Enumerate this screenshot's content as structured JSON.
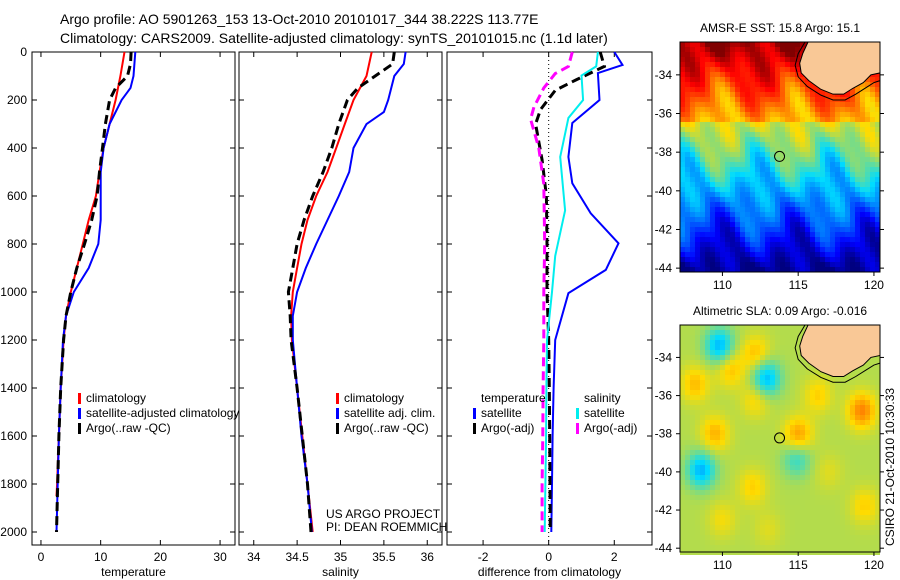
{
  "title_line1": "Argo profile: AO 5901263_153 13-Oct-2010 20101017_344 38.222S 113.77E",
  "title_line2": "Climatology: CARS2009. Satellite-adjusted climatology: synTS_20101015.nc (1.1d later)",
  "credit": "CSIRO 21-Oct-2010 10:30:33",
  "colors": {
    "climatology": "#ff0000",
    "satellite": "#0000ff",
    "argo": "#000000",
    "sal_satellite": "#00eeee",
    "sal_argo": "#ff00ff",
    "land": "#f9c896"
  },
  "chart_data": [
    {
      "type": "line",
      "id": "temperature",
      "xlabel": "temperature",
      "ylabel": "depth",
      "xlim": [
        -1.5,
        32.5
      ],
      "ylim": [
        2000,
        0
      ],
      "xticks": [
        0,
        10,
        20,
        30
      ],
      "yticks": [
        0,
        200,
        400,
        600,
        800,
        1000,
        1200,
        1400,
        1600,
        1800,
        2000
      ],
      "legend": [
        "climatology",
        "satellite-adjusted climatology",
        "Argo(..raw -QC)"
      ],
      "series": [
        {
          "name": "climatology",
          "color": "#ff0000",
          "dash": false,
          "depth": [
            0,
            100,
            200,
            300,
            400,
            500,
            600,
            700,
            800,
            900,
            1000,
            1100,
            1200,
            1400,
            1600,
            1800,
            1850
          ],
          "values": [
            14,
            13.3,
            12.5,
            11.5,
            10.5,
            9.8,
            9.2,
            8,
            7,
            6,
            5,
            4.2,
            3.8,
            3.3,
            3.0,
            2.7,
            2.6
          ]
        },
        {
          "name": "satellite-adjusted climatology",
          "color": "#0000ff",
          "dash": false,
          "depth": [
            0,
            100,
            150,
            200,
            300,
            400,
            500,
            600,
            700,
            800,
            900,
            1000,
            1100,
            1200,
            1400,
            1600,
            1800,
            2000
          ],
          "values": [
            15.8,
            15.5,
            15,
            13.5,
            11.5,
            10.5,
            10,
            10,
            10,
            9.6,
            8,
            5.5,
            4.2,
            3.7,
            3.3,
            3,
            2.8,
            2.6
          ]
        },
        {
          "name": "Argo(..raw -QC)",
          "color": "#000000",
          "dash": true,
          "depth": [
            0,
            50,
            100,
            150,
            200,
            300,
            400,
            500,
            600,
            700,
            800,
            900,
            1000,
            1100,
            1200,
            1400,
            1600,
            1800,
            2000
          ],
          "values": [
            15.1,
            15,
            14.5,
            12.5,
            11.5,
            10.8,
            10.3,
            9.8,
            9.4,
            8.5,
            7.3,
            6,
            5,
            4.2,
            3.8,
            3.3,
            3,
            2.8,
            2.6
          ]
        }
      ]
    },
    {
      "type": "line",
      "id": "salinity",
      "xlabel": "salinity",
      "xlim": [
        33.83,
        36.17
      ],
      "ylim": [
        2000,
        0
      ],
      "xticks": [
        34,
        34.5,
        35,
        35.5,
        36
      ],
      "legend": [
        "climatology",
        "satellite adj. clim.",
        "Argo(..raw -QC)"
      ],
      "annotation": [
        "US ARGO PROJECT",
        "PI: DEAN ROEMMICH"
      ],
      "series": [
        {
          "name": "climatology",
          "color": "#ff0000",
          "dash": false,
          "depth": [
            0,
            100,
            200,
            300,
            400,
            500,
            600,
            700,
            800,
            900,
            1000,
            1100,
            1200,
            1400,
            1600,
            1800,
            2000
          ],
          "values": [
            35.36,
            35.3,
            35.15,
            35.05,
            34.95,
            34.85,
            34.72,
            34.62,
            34.55,
            34.5,
            34.45,
            34.43,
            34.44,
            34.5,
            34.56,
            34.62,
            34.68
          ]
        },
        {
          "name": "satellite adj. clim.",
          "color": "#0000ff",
          "dash": false,
          "depth": [
            0,
            50,
            100,
            200,
            250,
            300,
            400,
            500,
            600,
            700,
            800,
            900,
            1000,
            1100,
            1200,
            1400,
            1600,
            1800,
            2000
          ],
          "values": [
            35.75,
            35.73,
            35.62,
            35.55,
            35.5,
            35.3,
            35.15,
            35.1,
            34.98,
            34.85,
            34.72,
            34.6,
            34.5,
            34.45,
            34.45,
            34.5,
            34.55,
            34.62,
            34.67
          ]
        },
        {
          "name": "Argo(..raw -QC)",
          "color": "#000000",
          "dash": true,
          "depth": [
            0,
            50,
            100,
            150,
            200,
            300,
            400,
            500,
            600,
            700,
            800,
            900,
            1000,
            1100,
            1200,
            1400,
            1600,
            1800,
            2000
          ],
          "values": [
            35.62,
            35.6,
            35.4,
            35.2,
            35.08,
            34.98,
            34.9,
            34.8,
            34.68,
            34.58,
            34.5,
            34.45,
            34.4,
            34.42,
            34.43,
            34.5,
            34.56,
            34.62,
            34.66
          ]
        }
      ]
    },
    {
      "type": "line",
      "id": "difference",
      "xlabel": "difference from climatology",
      "xlim": [
        -3.1,
        3.15
      ],
      "ylim": [
        2000,
        0
      ],
      "xticks": [
        -2,
        0,
        2
      ],
      "legend_headers": [
        "temperature",
        "salinity"
      ],
      "legend": [
        "satellite",
        "Argo(-adj)",
        "satellite",
        "Argo(-adj)"
      ],
      "series": [
        {
          "name": "temperature satellite",
          "color": "#0000ff",
          "dash": false,
          "depth": [
            0,
            54,
            88,
            200,
            296,
            437,
            547,
            672,
            797,
            908,
            1005,
            1200,
            1400,
            1600,
            1800,
            2000
          ],
          "values": [
            2.0,
            2.25,
            1.5,
            1.55,
            0.72,
            0.6,
            0.72,
            1.28,
            2.13,
            1.74,
            0.6,
            0.2,
            0.15,
            0.12,
            0.1,
            0.08
          ]
        },
        {
          "name": "temperature Argo(-adj)",
          "color": "#000000",
          "dash": true,
          "depth": [
            0,
            60,
            115,
            160,
            240,
            300,
            450,
            600,
            800,
            1000,
            1200,
            1400,
            1600,
            1800,
            2000
          ],
          "values": [
            1.57,
            1.7,
            0.85,
            0.2,
            -0.25,
            -0.4,
            -0.2,
            -0.07,
            -0.05,
            -0.05,
            0,
            0.02,
            0.03,
            0.04,
            0.05
          ]
        },
        {
          "name": "salinity satellite",
          "color": "#00eeee",
          "dash": false,
          "depth": [
            0,
            60,
            98,
            200,
            275,
            437,
            660,
            850,
            1000,
            1200,
            1400,
            1600,
            1800,
            2000
          ],
          "values": [
            1.5,
            1.45,
            1.0,
            1.05,
            0.6,
            0.35,
            0.5,
            0.2,
            0.1,
            -0.05,
            -0.07,
            -0.08,
            -0.1,
            -0.12
          ]
        },
        {
          "name": "salinity Argo(-adj)",
          "color": "#ff00ff",
          "dash": true,
          "depth": [
            0,
            60,
            90,
            150,
            230,
            280,
            400,
            550,
            800,
            1000,
            1200,
            1400,
            1600,
            1800,
            2000
          ],
          "values": [
            0.72,
            0.6,
            0.2,
            -0.15,
            -0.45,
            -0.55,
            -0.3,
            -0.15,
            -0.12,
            -0.15,
            -0.15,
            -0.17,
            -0.18,
            -0.2,
            -0.2
          ]
        }
      ]
    },
    {
      "type": "heatmap",
      "id": "sst_map",
      "title": "AMSR-E SST: 15.8 Argo: 15.1",
      "xlim": [
        107.2,
        120.4
      ],
      "ylim": [
        -44.2,
        -32.3
      ],
      "xticks": [
        110,
        115,
        120
      ],
      "yticks": [
        -34,
        -36,
        -38,
        -40,
        -42,
        -44
      ],
      "marker": {
        "lon": 113.77,
        "lat": -38.22
      }
    },
    {
      "type": "heatmap",
      "id": "sla_map",
      "title": "Altimetric SLA: 0.09 Argo: -0.016",
      "xlim": [
        107.2,
        120.4
      ],
      "ylim": [
        -44.2,
        -32.3
      ],
      "xticks": [
        110,
        115,
        120
      ],
      "yticks": [
        -34,
        -36,
        -38,
        -40,
        -42,
        -44
      ],
      "marker": {
        "lon": 113.77,
        "lat": -38.22
      }
    }
  ]
}
